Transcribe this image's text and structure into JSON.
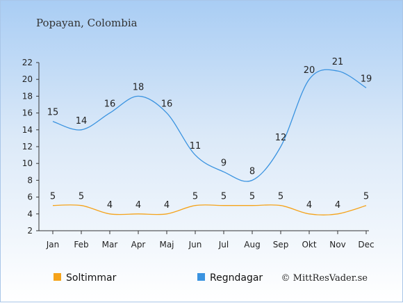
{
  "chart_data": {
    "type": "line",
    "title": "Popayan, Colombia",
    "categories": [
      "Jan",
      "Feb",
      "Mar",
      "Apr",
      "Maj",
      "Jun",
      "Jul",
      "Aug",
      "Sep",
      "Okt",
      "Nov",
      "Dec"
    ],
    "ylim": [
      2,
      22
    ],
    "yticks": [
      2,
      4,
      6,
      8,
      10,
      12,
      14,
      16,
      18,
      20,
      22
    ],
    "grid": false,
    "legend_position": "bottom-left",
    "series": [
      {
        "name": "Soltimmar",
        "color": "#f5a31a",
        "values": [
          5,
          5,
          4,
          4,
          4,
          5,
          5,
          5,
          5,
          4,
          4,
          5
        ]
      },
      {
        "name": "Regndagar",
        "color": "#3a93e0",
        "values": [
          15,
          14,
          16,
          18,
          16,
          11,
          9,
          8,
          12,
          20,
          21,
          19
        ]
      }
    ],
    "credit": "© MittResVader.se"
  }
}
